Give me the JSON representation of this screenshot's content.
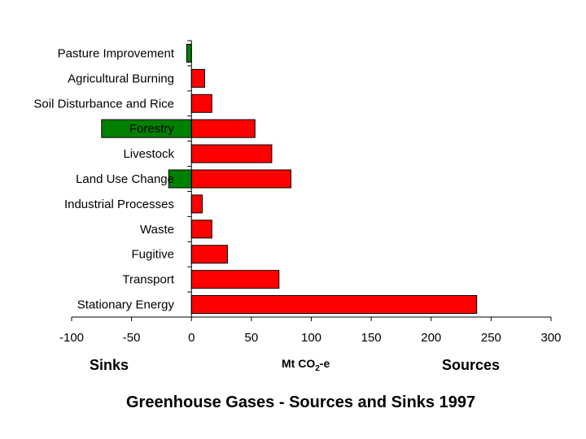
{
  "chart_data": {
    "type": "bar",
    "orientation": "horizontal",
    "title": "Greenhouse Gases - Sources and Sinks 1997",
    "xlabel_main": "Mt CO",
    "xlabel_sub": "2",
    "xlabel_suffix": "-e",
    "left_label": "Sinks",
    "right_label": "Sources",
    "xlim": [
      -100,
      300
    ],
    "xticks": [
      -100,
      -50,
      0,
      50,
      100,
      150,
      200,
      250,
      300
    ],
    "xtick_labels": [
      "-100",
      "-50",
      "0",
      "50",
      "100",
      "150",
      "200",
      "250",
      "300"
    ],
    "categories": [
      "Pasture Improvement",
      "Agricultural Burning",
      "Soil Disturbance and Rice",
      "Forestry",
      "Livestock",
      "Land Use Change",
      "Industrial Processes",
      "Waste",
      "Fugitive",
      "Transport",
      "Stationary Energy"
    ],
    "series": [
      {
        "role": "sources",
        "color": "#ff0000",
        "values": [
          0,
          11,
          17,
          53,
          67,
          83,
          9,
          17,
          30,
          73,
          238
        ]
      },
      {
        "role": "sinks",
        "color": "#008000",
        "values": [
          -4,
          0,
          0,
          -75,
          0,
          -19,
          0,
          0,
          0,
          0,
          0
        ]
      }
    ],
    "grid": false,
    "legend": "none"
  }
}
